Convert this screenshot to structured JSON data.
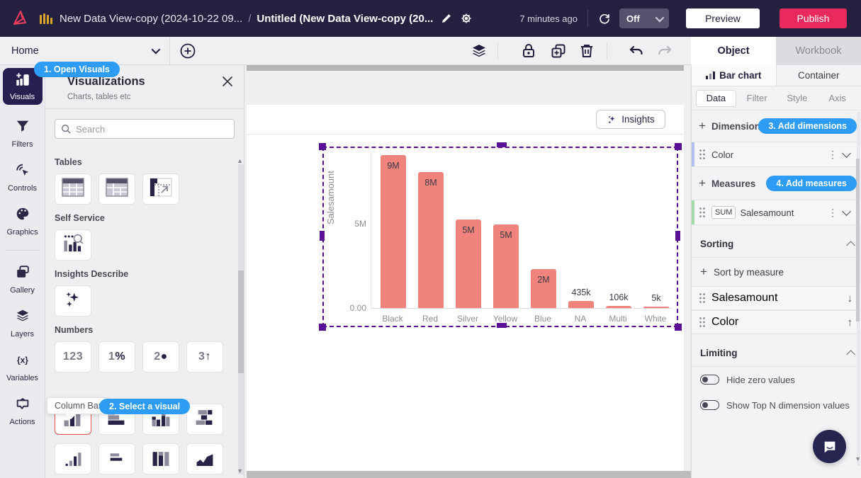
{
  "topbar": {
    "breadcrumb_parent": "New Data View-copy (2024-10-22 09...",
    "breadcrumb_separator": "/",
    "breadcrumb_current": "Untitled (New Data View-copy (20...",
    "last_saved": "7 minutes ago",
    "autosave_value": "Off",
    "preview_label": "Preview",
    "publish_label": "Publish"
  },
  "toolbar": {
    "page_selector": "Home",
    "object_tab": "Object",
    "workbook_tab": "Workbook"
  },
  "rail": {
    "items": [
      {
        "label": "Visuals",
        "icon": "visuals-icon",
        "active": true
      },
      {
        "label": "Filters",
        "icon": "filters-icon",
        "active": false
      },
      {
        "label": "Controls",
        "icon": "controls-icon",
        "active": false
      },
      {
        "label": "Graphics",
        "icon": "graphics-icon",
        "active": false,
        "divider_after": true
      },
      {
        "label": "Gallery",
        "icon": "gallery-icon",
        "active": false
      },
      {
        "label": "Layers",
        "icon": "layers-icon",
        "active": false
      },
      {
        "label": "Variables",
        "icon": "variables-icon",
        "active": false
      },
      {
        "label": "Actions",
        "icon": "actions-icon",
        "active": false
      }
    ]
  },
  "coach_marks": {
    "step1": "1. Open Visuals",
    "step2": "2. Select a visual",
    "step3": "3. Add dimensions",
    "step4": "4. Add measures",
    "tooltip": "Column Bar"
  },
  "visuals_panel": {
    "title": "Visualizations",
    "subtitle": "Charts, tables etc",
    "search_placeholder": "Search",
    "sections": [
      {
        "label": "Tables",
        "items": [
          {
            "icon": "table-icon"
          },
          {
            "icon": "pivot-table-icon"
          },
          {
            "icon": "pivot-chart-icon"
          }
        ]
      },
      {
        "label": "Self Service",
        "items": [
          {
            "icon": "self-service-icon"
          }
        ]
      },
      {
        "label": "Insights Describe",
        "items": [
          {
            "icon": "sparkles-icon"
          }
        ]
      },
      {
        "label": "Numbers",
        "items": [
          {
            "text": "123"
          },
          {
            "text": "1%"
          },
          {
            "text": "2●"
          },
          {
            "text": "3↑"
          }
        ]
      }
    ],
    "chart_rows": [
      [
        {
          "icon": "column-bar-icon",
          "selected": true
        },
        {
          "icon": "bar-icon"
        },
        {
          "icon": "grouped-column-icon"
        },
        {
          "icon": "grouped-bar-icon"
        }
      ],
      [
        {
          "icon": "small-column-icon"
        },
        {
          "icon": "h-lines-icon"
        },
        {
          "icon": "v-bars-icon"
        },
        {
          "icon": "area-icon"
        }
      ]
    ]
  },
  "canvas": {
    "insights_label": "Insights"
  },
  "chart_data": {
    "type": "bar",
    "title": "",
    "categories": [
      "Black",
      "Red",
      "Silver",
      "Yellow",
      "Blue",
      "NA",
      "Multi",
      "White"
    ],
    "values": [
      9000000,
      8000000,
      5200000,
      4900000,
      2300000,
      435000,
      106000,
      5000
    ],
    "value_labels": [
      "9M",
      "8M",
      "5M",
      "5M",
      "2M",
      "435k",
      "106k",
      "5k"
    ],
    "xlabel": "",
    "ylabel": "Salesamount",
    "yticks": [
      "5M",
      "0.00"
    ],
    "ylim": [
      0,
      9100000
    ],
    "grid": false,
    "legend": "none",
    "bar_color": "#f0837b"
  },
  "inspector": {
    "object_tabs": [
      {
        "label": "Bar chart",
        "active": true
      },
      {
        "label": "Container",
        "active": false
      }
    ],
    "subtabs": [
      {
        "label": "Data",
        "active": true
      },
      {
        "label": "Filter",
        "active": false
      },
      {
        "label": "Style",
        "active": false
      },
      {
        "label": "Axis",
        "active": false
      }
    ],
    "dimensions_label": "Dimensions",
    "dimension_rows": [
      {
        "label": "Color",
        "accent": "#b6c0f0"
      }
    ],
    "measures_label": "Measures",
    "measure_rows": [
      {
        "agg": "SUM",
        "label": "Salesamount",
        "accent": "#a6d7a7"
      }
    ],
    "sorting_label": "Sorting",
    "sort_by_measure_label": "Sort by measure",
    "sort_rows": [
      {
        "label": "Salesamount",
        "accent": "#a6d7a7",
        "direction": "↓"
      },
      {
        "label": "Color",
        "accent": "#b6c0f0",
        "direction": "↑"
      }
    ],
    "limiting_label": "Limiting",
    "toggles": [
      {
        "label": "Hide zero values",
        "on": false
      },
      {
        "label": "Show Top N dimension values",
        "on": false
      }
    ]
  }
}
